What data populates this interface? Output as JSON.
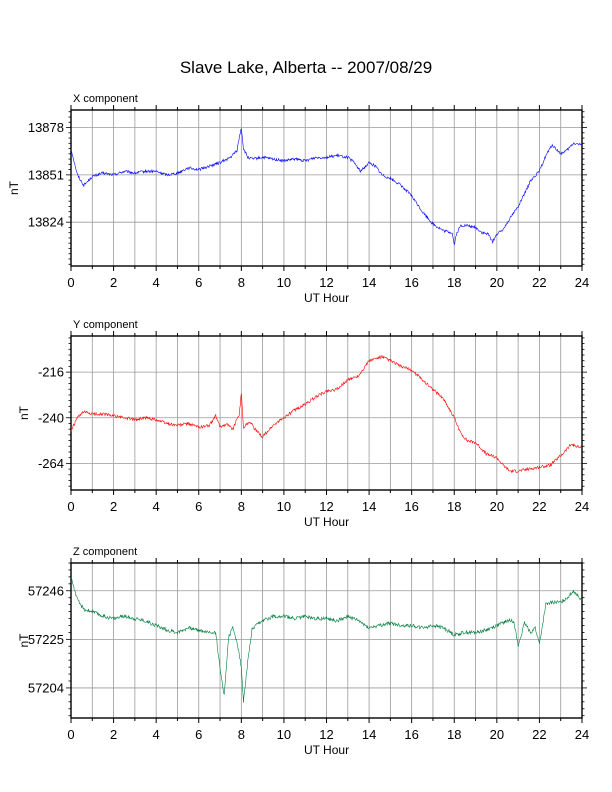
{
  "title": "Slave Lake, Alberta -- 2007/08/29",
  "chart_data": [
    {
      "type": "line",
      "title": "X component",
      "xlabel": "UT Hour",
      "ylabel": "nT",
      "xlim": [
        0,
        24
      ],
      "ylim": [
        13799,
        13888
      ],
      "x_ticks": [
        0,
        2,
        4,
        6,
        8,
        10,
        12,
        14,
        16,
        18,
        20,
        22,
        24
      ],
      "y_ticks": [
        13824,
        13851,
        13878
      ],
      "grid": true,
      "color": "#0000ff",
      "series": [
        {
          "x": [
            0,
            0.3,
            0.6,
            1,
            1.5,
            2,
            2.5,
            3,
            3.5,
            4,
            4.5,
            5,
            5.5,
            6,
            6.5,
            7,
            7.5,
            7.8,
            7.9,
            8,
            8.1,
            8.3,
            8.5,
            9,
            9.5,
            10,
            10.5,
            11,
            11.5,
            12,
            12.5,
            13,
            13.3,
            13.6,
            14,
            14.3,
            14.6,
            15,
            15.5,
            16,
            16.5,
            17,
            17.5,
            17.9,
            18,
            18.1,
            18.3,
            18.6,
            19,
            19.3,
            19.6,
            19.8,
            20,
            20.3,
            20.6,
            21,
            21.3,
            21.6,
            22,
            22.3,
            22.6,
            23,
            23.3,
            23.6,
            24
          ],
          "values": [
            13866,
            13851,
            13845,
            13850,
            13852,
            13851,
            13853,
            13852,
            13853,
            13853,
            13851,
            13852,
            13855,
            13854,
            13856,
            13858,
            13861,
            13865,
            13872,
            13878,
            13866,
            13861,
            13860,
            13861,
            13860,
            13859,
            13860,
            13859,
            13861,
            13861,
            13862,
            13861,
            13858,
            13853,
            13858,
            13856,
            13851,
            13849,
            13845,
            13839,
            13830,
            13823,
            13819,
            13818,
            13811,
            13817,
            13822,
            13822,
            13821,
            13818,
            13817,
            13813,
            13817,
            13820,
            13826,
            13833,
            13840,
            13848,
            13853,
            13862,
            13868,
            13863,
            13865,
            13869,
            13868
          ]
        }
      ]
    },
    {
      "type": "line",
      "title": "Y component",
      "xlabel": "UT Hour",
      "ylabel": "nT",
      "xlim": [
        0,
        24
      ],
      "ylim": [
        -278,
        -197
      ],
      "x_ticks": [
        0,
        2,
        4,
        6,
        8,
        10,
        12,
        14,
        16,
        18,
        20,
        22,
        24
      ],
      "y_ticks": [
        -216,
        -240,
        -264
      ],
      "grid": true,
      "color": "#ff0000",
      "series": [
        {
          "x": [
            0,
            0.3,
            0.6,
            1,
            1.5,
            2,
            2.5,
            3,
            3.5,
            4,
            4.5,
            5,
            5.5,
            6,
            6.5,
            6.8,
            7,
            7.3,
            7.6,
            7.9,
            8,
            8.1,
            8.4,
            8.7,
            9,
            9.5,
            10,
            10.5,
            11,
            11.5,
            12,
            12.5,
            13,
            13.5,
            14,
            14.3,
            14.6,
            15,
            15.5,
            16,
            16.5,
            17,
            17.5,
            18,
            18.3,
            18.6,
            19,
            19.5,
            20,
            20.3,
            20.6,
            21,
            21.5,
            22,
            22.5,
            23,
            23.5,
            24
          ],
          "values": [
            -247,
            -240,
            -237,
            -238,
            -238,
            -239,
            -240,
            -241,
            -240,
            -241,
            -243,
            -244,
            -243,
            -245,
            -244,
            -239,
            -245,
            -243,
            -246,
            -238,
            -227,
            -245,
            -242,
            -247,
            -250,
            -244,
            -240,
            -236,
            -233,
            -229,
            -226,
            -225,
            -220,
            -218,
            -210,
            -209,
            -208,
            -210,
            -213,
            -215,
            -220,
            -225,
            -230,
            -240,
            -248,
            -252,
            -253,
            -259,
            -261,
            -265,
            -268,
            -268,
            -267,
            -266,
            -265,
            -260,
            -254,
            -256
          ]
        }
      ]
    },
    {
      "type": "line",
      "title": "Z component",
      "xlabel": "UT Hour",
      "ylabel": "nT",
      "xlim": [
        0,
        24
      ],
      "ylim": [
        57191,
        57258
      ],
      "x_ticks": [
        0,
        2,
        4,
        6,
        8,
        10,
        12,
        14,
        16,
        18,
        20,
        22,
        24
      ],
      "y_ticks": [
        57204,
        57225,
        57246
      ],
      "grid": true,
      "color": "#007f3f",
      "series": [
        {
          "x": [
            0,
            0.3,
            0.6,
            1,
            1.5,
            2,
            2.5,
            3,
            3.5,
            4,
            4.5,
            5,
            5.5,
            6,
            6.5,
            6.8,
            7,
            7.2,
            7.4,
            7.6,
            7.8,
            8,
            8.1,
            8.3,
            8.5,
            8.7,
            9,
            9.5,
            10,
            10.5,
            11,
            11.5,
            12,
            12.5,
            13,
            13.5,
            14,
            14.5,
            15,
            15.5,
            16,
            16.5,
            17,
            17.5,
            18,
            18.5,
            19,
            19.5,
            20,
            20.5,
            20.8,
            21,
            21.3,
            21.6,
            21.8,
            22,
            22.3,
            22.6,
            23,
            23.3,
            23.6,
            24
          ],
          "values": [
            57252,
            57242,
            57238,
            57237,
            57235,
            57234,
            57235,
            57234,
            57233,
            57231,
            57229,
            57228,
            57230,
            57229,
            57228,
            57228,
            57212,
            57201,
            57226,
            57230,
            57224,
            57213,
            57198,
            57215,
            57229,
            57231,
            57233,
            57235,
            57235,
            57234,
            57235,
            57234,
            57234,
            57233,
            57235,
            57233,
            57230,
            57231,
            57232,
            57231,
            57231,
            57230,
            57231,
            57230,
            57227,
            57228,
            57228,
            57229,
            57231,
            57233,
            57233,
            57222,
            57232,
            57228,
            57230,
            57223,
            57240,
            57241,
            57241,
            57243,
            57246,
            57242
          ]
        }
      ]
    }
  ]
}
